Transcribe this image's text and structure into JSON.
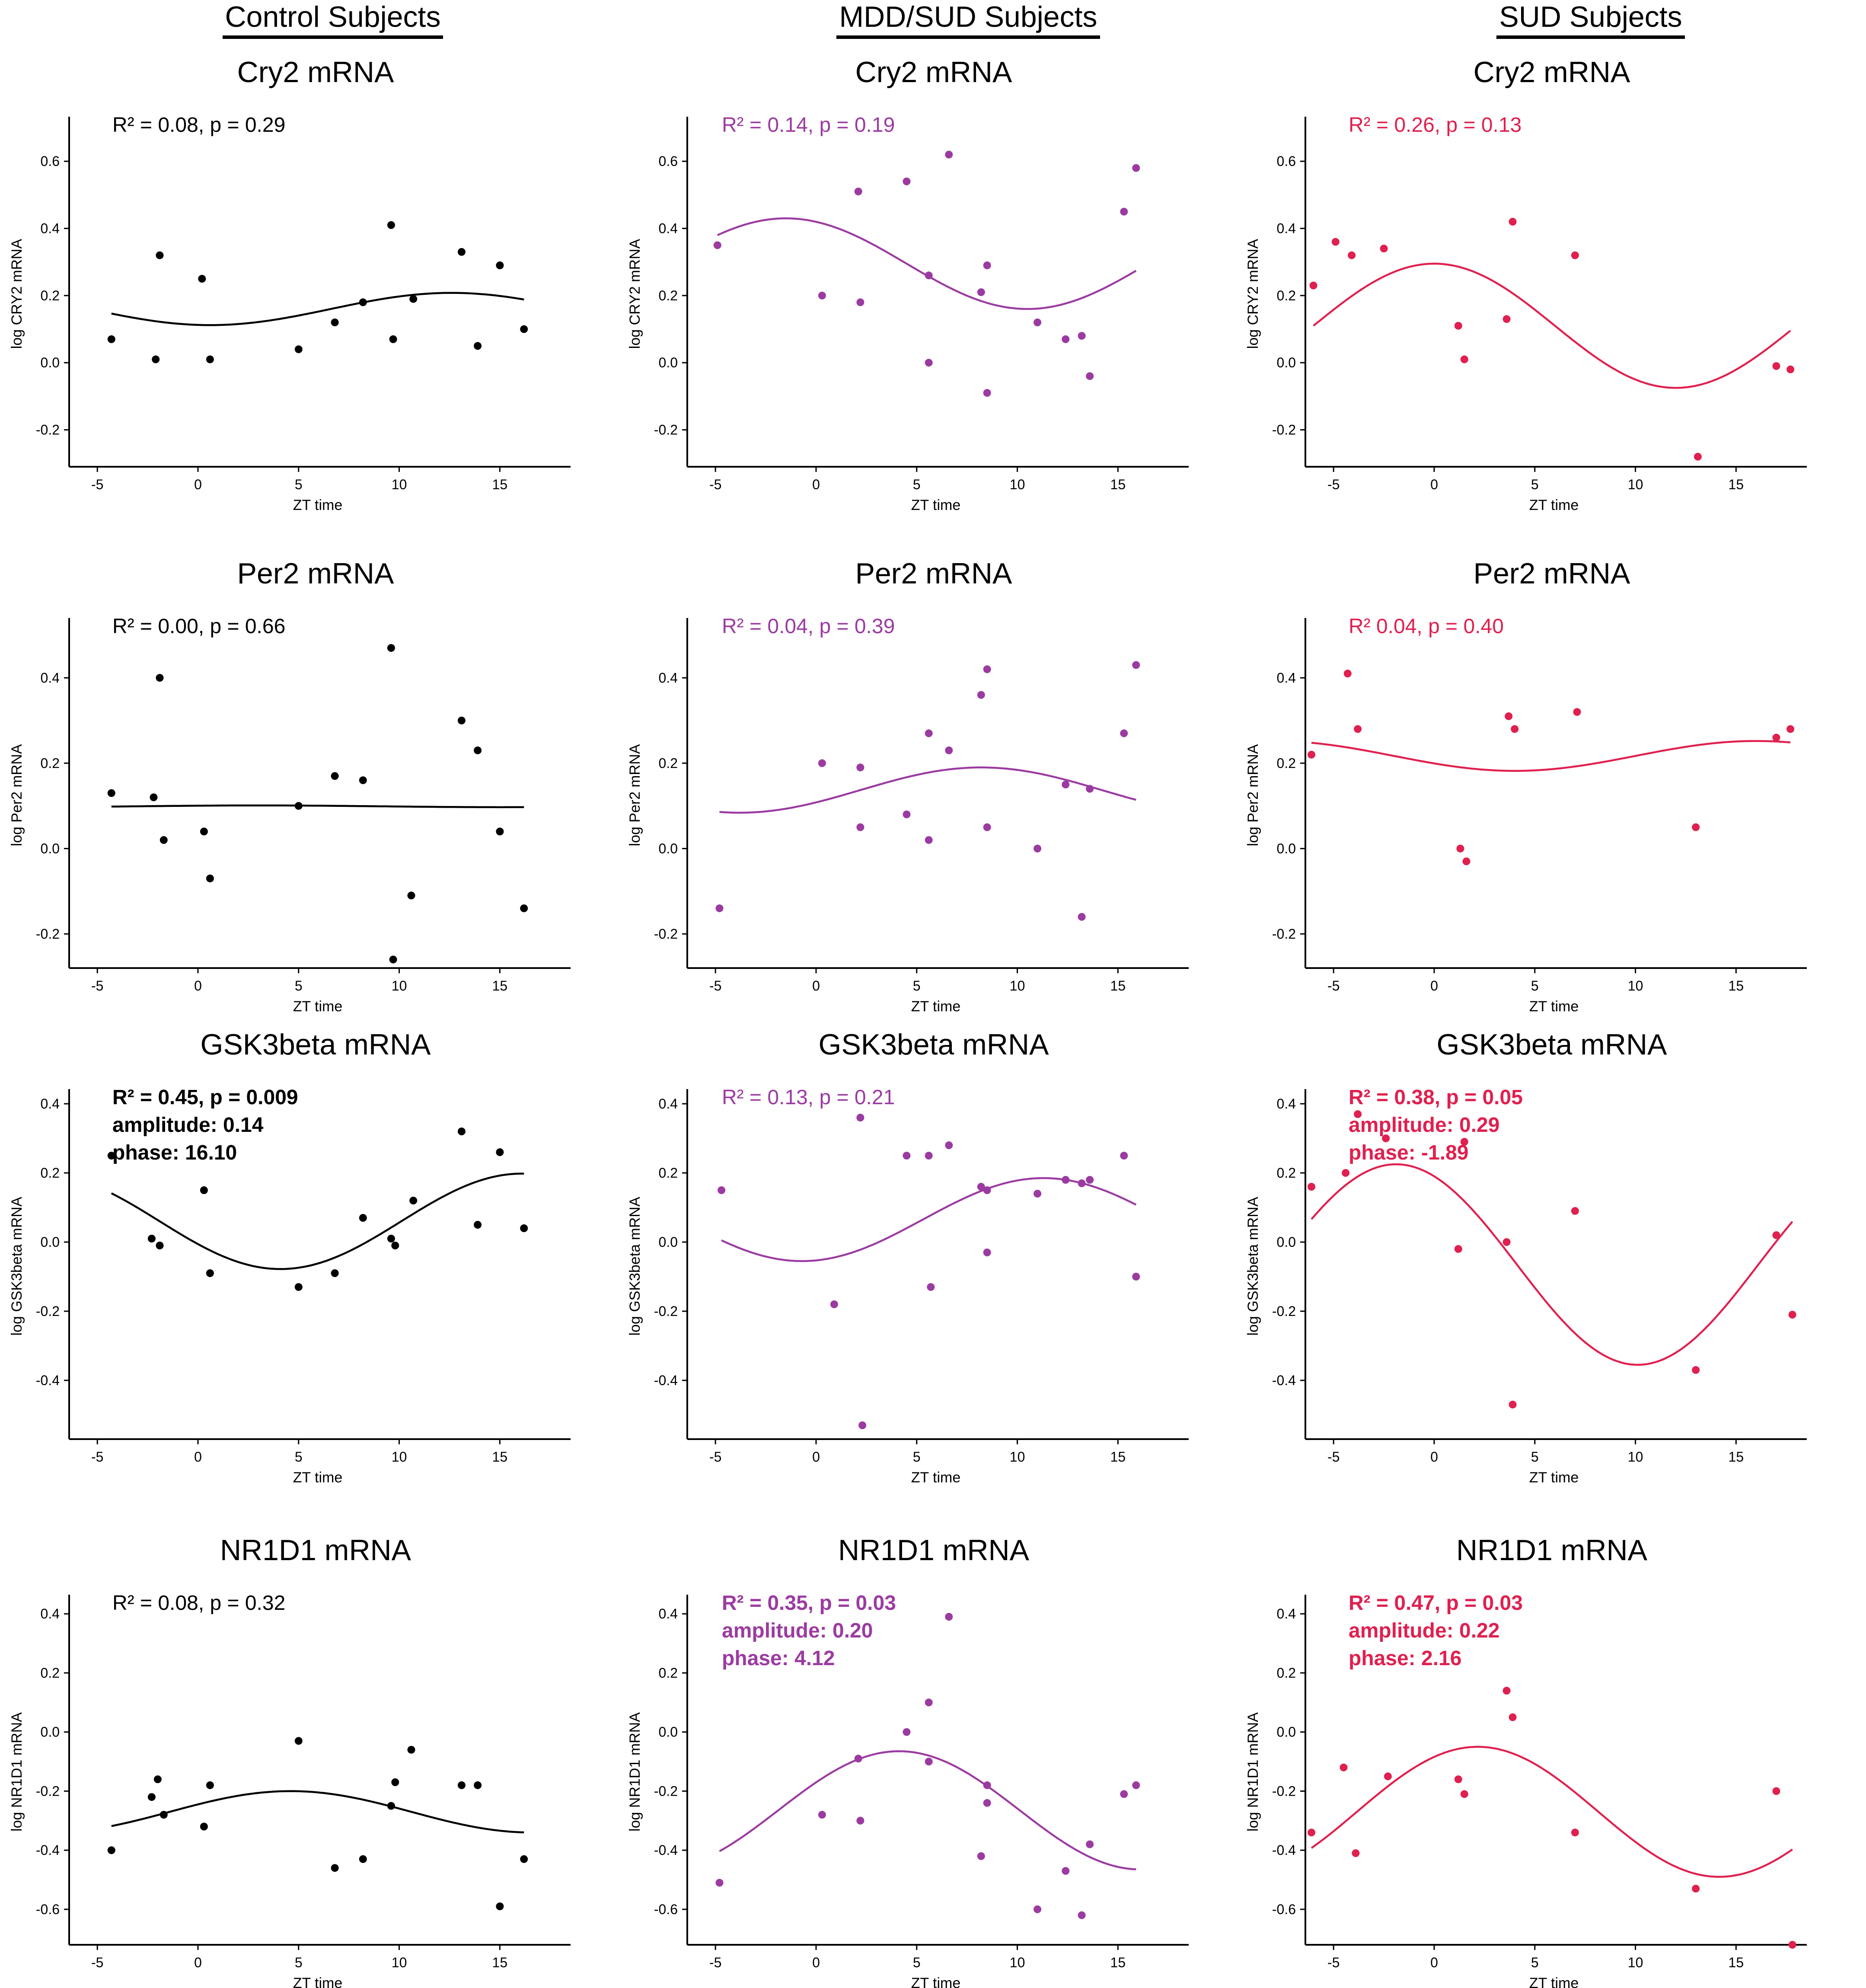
{
  "columns": [
    {
      "header": "Control Subjects",
      "color": "#000000"
    },
    {
      "header": "MDD/SUD Subjects",
      "color": "#9b3ba1"
    },
    {
      "header": "SUD Subjects",
      "color": "#e0204f"
    }
  ],
  "shared": {
    "xlabel": "ZT time",
    "xticks": [
      -5,
      0,
      5,
      10,
      15
    ]
  },
  "chart_data": [
    {
      "type": "scatter",
      "row": 0,
      "col": 0,
      "title": "Cry2 mRNA",
      "ylabel": "log CRY2 mRNA",
      "yticks": [
        0.6,
        0.4,
        0.2,
        0.0,
        -0.2
      ],
      "ylim": [
        -0.31,
        0.72
      ],
      "xlim": [
        -6.4,
        18.3
      ],
      "stats": [
        "R² = 0.08, p = 0.29"
      ],
      "stats_bold": false,
      "fit": {
        "mean": 0.16,
        "amplitude": 0.048,
        "peak": 12.6
      },
      "points": [
        [
          -4.3,
          0.07
        ],
        [
          -2.1,
          0.01
        ],
        [
          -1.9,
          0.32
        ],
        [
          0.2,
          0.25
        ],
        [
          0.6,
          0.01
        ],
        [
          5.0,
          0.04
        ],
        [
          6.8,
          0.12
        ],
        [
          8.2,
          0.18
        ],
        [
          9.6,
          0.41
        ],
        [
          9.7,
          0.07
        ],
        [
          10.7,
          0.19
        ],
        [
          13.1,
          0.33
        ],
        [
          13.9,
          0.05
        ],
        [
          15.0,
          0.29
        ],
        [
          16.2,
          0.1
        ]
      ]
    },
    {
      "type": "scatter",
      "row": 0,
      "col": 1,
      "title": "Cry2 mRNA",
      "ylabel": "log CRY2 mRNA",
      "yticks": [
        0.6,
        0.4,
        0.2,
        0.0,
        -0.2
      ],
      "ylim": [
        -0.31,
        0.72
      ],
      "xlim": [
        -6.4,
        18.3
      ],
      "stats": [
        "R² = 0.14, p = 0.19"
      ],
      "stats_bold": false,
      "fit": {
        "mean": 0.295,
        "amplitude": 0.135,
        "peak": -1.5
      },
      "points": [
        [
          -4.9,
          0.35
        ],
        [
          0.3,
          0.2
        ],
        [
          2.1,
          0.51
        ],
        [
          2.2,
          0.18
        ],
        [
          4.5,
          0.54
        ],
        [
          5.6,
          0.26
        ],
        [
          5.6,
          0.0
        ],
        [
          6.6,
          0.62
        ],
        [
          8.2,
          0.21
        ],
        [
          8.5,
          0.29
        ],
        [
          8.5,
          -0.09
        ],
        [
          11.0,
          0.12
        ],
        [
          12.4,
          0.07
        ],
        [
          13.2,
          0.08
        ],
        [
          13.6,
          -0.04
        ],
        [
          15.3,
          0.45
        ],
        [
          15.9,
          0.58
        ]
      ]
    },
    {
      "type": "scatter",
      "row": 0,
      "col": 2,
      "title": "Cry2 mRNA",
      "ylabel": "log CRY2 mRNA",
      "yticks": [
        0.6,
        0.4,
        0.2,
        0.0,
        -0.2
      ],
      "ylim": [
        -0.31,
        0.72
      ],
      "xlim": [
        -6.4,
        18.3
      ],
      "stats": [
        "R² = 0.26, p = 0.13"
      ],
      "stats_bold": false,
      "fit": {
        "mean": 0.11,
        "amplitude": 0.185,
        "peak": 0.0
      },
      "points": [
        [
          -6.0,
          0.23
        ],
        [
          -4.9,
          0.36
        ],
        [
          -4.1,
          0.32
        ],
        [
          -2.5,
          0.34
        ],
        [
          1.2,
          0.11
        ],
        [
          1.5,
          0.01
        ],
        [
          3.6,
          0.13
        ],
        [
          3.9,
          0.42
        ],
        [
          7.0,
          0.32
        ],
        [
          13.1,
          -0.28
        ],
        [
          17.0,
          -0.01
        ],
        [
          17.7,
          -0.02
        ]
      ]
    },
    {
      "type": "scatter",
      "row": 1,
      "col": 0,
      "title": "Per2 mRNA",
      "ylabel": "log Per2 mRNA",
      "yticks": [
        0.4,
        0.2,
        0.0,
        -0.2
      ],
      "ylim": [
        -0.28,
        0.53
      ],
      "xlim": [
        -6.4,
        18.3
      ],
      "stats": [
        "R² = 0.00, p = 0.66"
      ],
      "stats_bold": false,
      "fit": {
        "mean": 0.099,
        "amplitude": 0.002,
        "peak": 3.0
      },
      "points": [
        [
          -4.3,
          0.13
        ],
        [
          -2.2,
          0.12
        ],
        [
          -1.9,
          0.4
        ],
        [
          -1.7,
          0.02
        ],
        [
          0.3,
          0.04
        ],
        [
          0.6,
          -0.07
        ],
        [
          5.0,
          0.1
        ],
        [
          6.8,
          0.17
        ],
        [
          8.2,
          0.16
        ],
        [
          9.6,
          0.47
        ],
        [
          9.7,
          -0.26
        ],
        [
          10.6,
          -0.11
        ],
        [
          13.1,
          0.3
        ],
        [
          13.9,
          0.23
        ],
        [
          15.0,
          0.04
        ],
        [
          16.2,
          -0.14
        ]
      ]
    },
    {
      "type": "scatter",
      "row": 1,
      "col": 1,
      "title": "Per2 mRNA",
      "ylabel": "log Per2 mRNA",
      "yticks": [
        0.4,
        0.2,
        0.0,
        -0.2
      ],
      "ylim": [
        -0.28,
        0.53
      ],
      "xlim": [
        -6.4,
        18.3
      ],
      "stats": [
        "R² = 0.04, p = 0.39"
      ],
      "stats_bold": false,
      "fit": {
        "mean": 0.137,
        "amplitude": 0.053,
        "peak": 8.2
      },
      "points": [
        [
          -4.8,
          -0.14
        ],
        [
          0.3,
          0.2
        ],
        [
          2.2,
          0.19
        ],
        [
          2.2,
          0.05
        ],
        [
          4.5,
          0.08
        ],
        [
          5.6,
          0.27
        ],
        [
          5.6,
          0.02
        ],
        [
          6.6,
          0.23
        ],
        [
          8.2,
          0.36
        ],
        [
          8.5,
          0.42
        ],
        [
          8.5,
          0.05
        ],
        [
          11.0,
          0.0
        ],
        [
          12.4,
          0.15
        ],
        [
          13.2,
          -0.16
        ],
        [
          13.6,
          0.14
        ],
        [
          15.3,
          0.27
        ],
        [
          15.9,
          0.43
        ]
      ]
    },
    {
      "type": "scatter",
      "row": 1,
      "col": 2,
      "title": "Per2 mRNA",
      "ylabel": "log Per2 mRNA",
      "yticks": [
        0.4,
        0.2,
        0.0,
        -0.2
      ],
      "ylim": [
        -0.28,
        0.53
      ],
      "xlim": [
        -6.4,
        18.3
      ],
      "stats": [
        "R²  0.04, p = 0.40"
      ],
      "stats_bold": false,
      "fit": {
        "mean": 0.217,
        "amplitude": 0.035,
        "peak": -8.0
      },
      "points": [
        [
          -6.1,
          0.22
        ],
        [
          -4.3,
          0.41
        ],
        [
          -3.8,
          0.28
        ],
        [
          1.3,
          0.0
        ],
        [
          1.6,
          -0.03
        ],
        [
          3.7,
          0.31
        ],
        [
          4.0,
          0.28
        ],
        [
          7.1,
          0.32
        ],
        [
          13.0,
          0.05
        ],
        [
          17.0,
          0.26
        ],
        [
          17.7,
          0.28
        ]
      ]
    },
    {
      "type": "scatter",
      "row": 2,
      "col": 0,
      "title": "GSK3beta mRNA",
      "ylabel": "log GSK3beta mRNA",
      "yticks": [
        0.4,
        0.2,
        0.0,
        -0.2,
        -0.4
      ],
      "ylim": [
        -0.57,
        0.43
      ],
      "xlim": [
        -6.4,
        18.3
      ],
      "stats": [
        "R² = 0.45, p = 0.009",
        "amplitude: 0.14",
        "phase: 16.10"
      ],
      "stats_bold": true,
      "fit": {
        "mean": 0.06,
        "amplitude": 0.138,
        "peak": 16.1
      },
      "points": [
        [
          -4.3,
          0.25
        ],
        [
          -2.3,
          0.01
        ],
        [
          -1.9,
          -0.01
        ],
        [
          0.3,
          0.15
        ],
        [
          0.6,
          -0.09
        ],
        [
          5.0,
          -0.13
        ],
        [
          6.8,
          -0.09
        ],
        [
          8.2,
          0.07
        ],
        [
          9.6,
          0.01
        ],
        [
          9.8,
          -0.01
        ],
        [
          10.7,
          0.12
        ],
        [
          13.1,
          0.32
        ],
        [
          13.9,
          0.05
        ],
        [
          15.0,
          0.26
        ],
        [
          16.2,
          0.04
        ]
      ]
    },
    {
      "type": "scatter",
      "row": 2,
      "col": 1,
      "title": "GSK3beta mRNA",
      "ylabel": "log GSK3beta mRNA",
      "yticks": [
        0.4,
        0.2,
        0.0,
        -0.2,
        -0.4
      ],
      "ylim": [
        -0.57,
        0.43
      ],
      "xlim": [
        -6.4,
        18.3
      ],
      "stats": [
        "R² = 0.13, p = 0.21"
      ],
      "stats_bold": false,
      "fit": {
        "mean": 0.065,
        "amplitude": 0.12,
        "peak": 11.3
      },
      "points": [
        [
          -4.7,
          0.15
        ],
        [
          0.9,
          -0.18
        ],
        [
          2.2,
          0.36
        ],
        [
          2.3,
          -0.53
        ],
        [
          4.5,
          0.25
        ],
        [
          5.6,
          0.25
        ],
        [
          5.7,
          -0.13
        ],
        [
          6.6,
          0.28
        ],
        [
          8.2,
          0.16
        ],
        [
          8.5,
          0.15
        ],
        [
          8.5,
          -0.03
        ],
        [
          11.0,
          0.14
        ],
        [
          12.4,
          0.18
        ],
        [
          13.2,
          0.17
        ],
        [
          13.6,
          0.18
        ],
        [
          15.3,
          0.25
        ],
        [
          15.9,
          -0.1
        ]
      ]
    },
    {
      "type": "scatter",
      "row": 2,
      "col": 2,
      "title": "GSK3beta mRNA",
      "ylabel": "log GSK3beta mRNA",
      "yticks": [
        0.4,
        0.2,
        0.0,
        -0.2,
        -0.4
      ],
      "ylim": [
        -0.57,
        0.43
      ],
      "xlim": [
        -6.4,
        18.3
      ],
      "stats": [
        "R² = 0.38, p = 0.05",
        "amplitude: 0.29",
        "phase: -1.89"
      ],
      "stats_bold": true,
      "fit": {
        "mean": -0.065,
        "amplitude": 0.29,
        "peak": -1.89
      },
      "points": [
        [
          -6.1,
          0.16
        ],
        [
          -4.4,
          0.2
        ],
        [
          -3.8,
          0.37
        ],
        [
          -2.4,
          0.3
        ],
        [
          1.2,
          -0.02
        ],
        [
          1.5,
          0.29
        ],
        [
          3.6,
          0.0
        ],
        [
          3.9,
          -0.47
        ],
        [
          7.0,
          0.09
        ],
        [
          13.0,
          -0.37
        ],
        [
          17.0,
          0.02
        ],
        [
          17.8,
          -0.21
        ]
      ]
    },
    {
      "type": "scatter",
      "row": 3,
      "col": 0,
      "title": "NR1D1 mRNA",
      "ylabel": "log NR1D1 mRNA",
      "yticks": [
        0.4,
        0.2,
        0.0,
        -0.2,
        -0.4,
        -0.6
      ],
      "ylim": [
        -0.72,
        0.45
      ],
      "xlim": [
        -6.4,
        18.3
      ],
      "stats": [
        "R² = 0.08, p = 0.32"
      ],
      "stats_bold": false,
      "fit": {
        "mean": -0.27,
        "amplitude": 0.07,
        "peak": 4.6
      },
      "points": [
        [
          -4.3,
          -0.4
        ],
        [
          -2.3,
          -0.22
        ],
        [
          -2.0,
          -0.16
        ],
        [
          -1.7,
          -0.28
        ],
        [
          0.3,
          -0.32
        ],
        [
          0.6,
          -0.18
        ],
        [
          5.0,
          -0.03
        ],
        [
          6.8,
          -0.46
        ],
        [
          8.2,
          -0.43
        ],
        [
          9.6,
          -0.25
        ],
        [
          9.8,
          -0.17
        ],
        [
          10.6,
          -0.06
        ],
        [
          13.1,
          -0.18
        ],
        [
          13.9,
          -0.18
        ],
        [
          15.0,
          -0.59
        ],
        [
          16.2,
          -0.43
        ]
      ]
    },
    {
      "type": "scatter",
      "row": 3,
      "col": 1,
      "title": "NR1D1 mRNA",
      "ylabel": "log NR1D1 mRNA",
      "yticks": [
        0.4,
        0.2,
        0.0,
        -0.2,
        -0.4,
        -0.6
      ],
      "ylim": [
        -0.72,
        0.45
      ],
      "xlim": [
        -6.4,
        18.3
      ],
      "stats": [
        "R² = 0.35, p = 0.03",
        "amplitude: 0.20",
        "phase: 4.12"
      ],
      "stats_bold": true,
      "fit": {
        "mean": -0.265,
        "amplitude": 0.2,
        "peak": 4.12
      },
      "points": [
        [
          -4.8,
          -0.51
        ],
        [
          0.3,
          -0.28
        ],
        [
          2.1,
          -0.09
        ],
        [
          2.2,
          -0.3
        ],
        [
          4.5,
          0.0
        ],
        [
          5.6,
          0.1
        ],
        [
          5.6,
          -0.1
        ],
        [
          6.6,
          0.39
        ],
        [
          8.2,
          -0.42
        ],
        [
          8.5,
          -0.18
        ],
        [
          8.5,
          -0.24
        ],
        [
          11.0,
          -0.6
        ],
        [
          12.4,
          -0.47
        ],
        [
          13.2,
          -0.62
        ],
        [
          13.6,
          -0.38
        ],
        [
          15.3,
          -0.21
        ],
        [
          15.9,
          -0.18
        ]
      ]
    },
    {
      "type": "scatter",
      "row": 3,
      "col": 2,
      "title": "NR1D1 mRNA",
      "ylabel": "log NR1D1 mRNA",
      "yticks": [
        0.4,
        0.2,
        0.0,
        -0.2,
        -0.4,
        -0.6
      ],
      "ylim": [
        -0.72,
        0.45
      ],
      "xlim": [
        -6.4,
        18.3
      ],
      "stats": [
        "R² = 0.47, p = 0.03",
        "amplitude: 0.22",
        "phase: 2.16"
      ],
      "stats_bold": true,
      "fit": {
        "mean": -0.27,
        "amplitude": 0.22,
        "peak": 2.16
      },
      "points": [
        [
          -6.1,
          -0.34
        ],
        [
          -4.5,
          -0.12
        ],
        [
          -3.9,
          -0.41
        ],
        [
          -2.3,
          -0.15
        ],
        [
          1.2,
          -0.16
        ],
        [
          1.5,
          -0.21
        ],
        [
          3.6,
          0.14
        ],
        [
          3.9,
          0.05
        ],
        [
          7.0,
          -0.34
        ],
        [
          13.0,
          -0.53
        ],
        [
          17.0,
          -0.2
        ],
        [
          17.8,
          -0.72
        ]
      ]
    }
  ]
}
